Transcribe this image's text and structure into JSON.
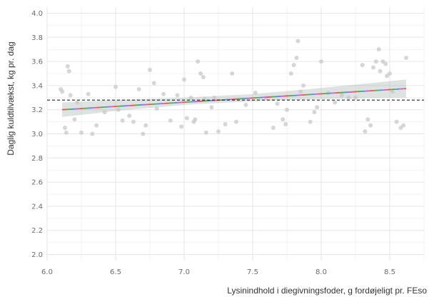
{
  "chart_data": {
    "type": "scatter",
    "title": "",
    "xlabel": "Lysinindhold i diegivningsfoder, g fordøjeligt pr. FEso",
    "ylabel": "Daglig kuldtilvækst, kg pr. dag",
    "xlim": [
      6.0,
      8.75
    ],
    "ylim": [
      1.95,
      4.05
    ],
    "x_ticks": [
      "6.0",
      "6.5",
      "7.0",
      "7.5",
      "8.0",
      "8.5"
    ],
    "y_ticks": [
      "2.0",
      "2.2",
      "2.4",
      "2.6",
      "2.8",
      "3.0",
      "3.2",
      "3.4",
      "3.6",
      "3.8",
      "4.0"
    ],
    "grid": true,
    "points": [
      [
        6.1,
        3.37
      ],
      [
        6.11,
        3.35
      ],
      [
        6.13,
        3.05
      ],
      [
        6.15,
        3.56
      ],
      [
        6.16,
        3.52
      ],
      [
        6.14,
        3.01
      ],
      [
        6.17,
        3.32
      ],
      [
        6.2,
        3.12
      ],
      [
        6.22,
        3.26
      ],
      [
        6.25,
        3.01
      ],
      [
        6.3,
        3.33
      ],
      [
        6.33,
        3.0
      ],
      [
        6.36,
        3.07
      ],
      [
        6.42,
        3.18
      ],
      [
        6.5,
        3.39
      ],
      [
        6.52,
        3.2
      ],
      [
        6.55,
        3.11
      ],
      [
        6.6,
        3.15
      ],
      [
        6.63,
        3.1
      ],
      [
        6.67,
        3.37
      ],
      [
        6.7,
        3.0
      ],
      [
        6.72,
        3.07
      ],
      [
        6.75,
        3.53
      ],
      [
        6.78,
        3.42
      ],
      [
        6.8,
        3.21
      ],
      [
        6.85,
        3.33
      ],
      [
        6.9,
        3.11
      ],
      [
        6.95,
        3.32
      ],
      [
        6.98,
        3.06
      ],
      [
        7.0,
        3.45
      ],
      [
        7.02,
        3.13
      ],
      [
        7.05,
        3.3
      ],
      [
        7.07,
        3.1
      ],
      [
        7.08,
        3.12
      ],
      [
        7.1,
        3.6
      ],
      [
        7.12,
        3.5
      ],
      [
        7.14,
        3.47
      ],
      [
        7.15,
        3.29
      ],
      [
        7.16,
        3.01
      ],
      [
        7.2,
        3.22
      ],
      [
        7.22,
        3.3
      ],
      [
        7.25,
        3.02
      ],
      [
        7.3,
        3.08
      ],
      [
        7.35,
        3.5
      ],
      [
        7.38,
        3.1
      ],
      [
        7.45,
        3.24
      ],
      [
        7.52,
        3.34
      ],
      [
        7.6,
        3.3
      ],
      [
        7.65,
        3.05
      ],
      [
        7.68,
        3.25
      ],
      [
        7.72,
        3.12
      ],
      [
        7.74,
        3.08
      ],
      [
        7.75,
        3.2
      ],
      [
        7.78,
        3.5
      ],
      [
        7.8,
        3.57
      ],
      [
        7.82,
        3.63
      ],
      [
        7.83,
        3.77
      ],
      [
        7.85,
        3.35
      ],
      [
        7.87,
        3.4
      ],
      [
        7.92,
        3.1
      ],
      [
        7.95,
        3.18
      ],
      [
        7.97,
        3.22
      ],
      [
        8.0,
        3.6
      ],
      [
        8.05,
        3.34
      ],
      [
        8.1,
        3.26
      ],
      [
        8.15,
        3.32
      ],
      [
        8.2,
        3.3
      ],
      [
        8.25,
        3.3
      ],
      [
        8.3,
        3.57
      ],
      [
        8.32,
        3.02
      ],
      [
        8.34,
        3.12
      ],
      [
        8.36,
        3.07
      ],
      [
        8.38,
        3.55
      ],
      [
        8.4,
        3.6
      ],
      [
        8.42,
        3.7
      ],
      [
        8.43,
        3.52
      ],
      [
        8.45,
        3.6
      ],
      [
        8.47,
        3.58
      ],
      [
        8.48,
        3.48
      ],
      [
        8.5,
        3.5
      ],
      [
        8.52,
        3.35
      ],
      [
        8.55,
        3.1
      ],
      [
        8.58,
        3.05
      ],
      [
        8.6,
        3.07
      ],
      [
        8.62,
        3.63
      ]
    ],
    "fit_line": {
      "x": [
        6.11,
        8.62
      ],
      "y": [
        3.2,
        3.375
      ]
    },
    "confidence_band": {
      "x": [
        6.11,
        6.5,
        7.0,
        7.5,
        8.0,
        8.62
      ],
      "lower": [
        3.14,
        3.19,
        3.24,
        3.27,
        3.29,
        3.3
      ],
      "upper": [
        3.26,
        3.28,
        3.3,
        3.33,
        3.38,
        3.45
      ]
    },
    "reference_line": {
      "y": 3.28,
      "style": "dashed"
    },
    "colors": {
      "points": "#c8c8c8",
      "fit_line_segments": [
        "#e8574f",
        "#5aa94c",
        "#5b8fd9",
        "#cf5fcf"
      ],
      "band": "#9cb0a8",
      "reference_line": "#222222",
      "grid": "#e6e6e6"
    }
  }
}
